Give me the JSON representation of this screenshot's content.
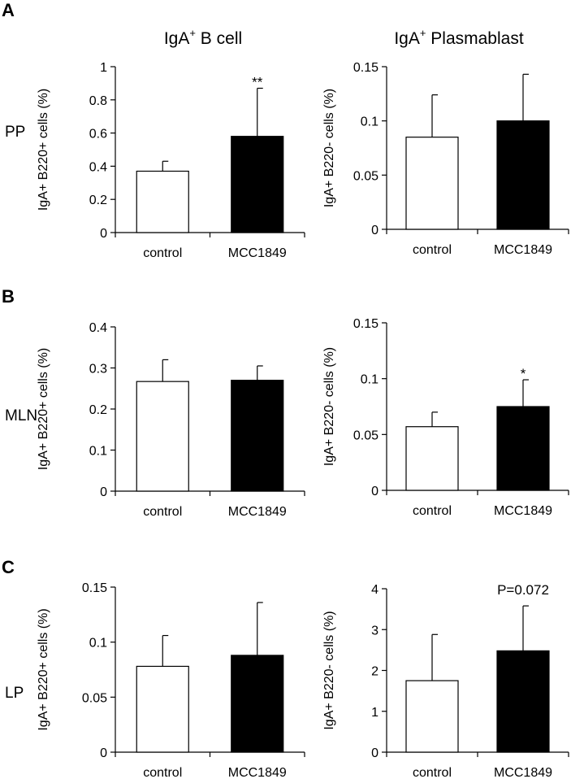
{
  "figure": {
    "column_titles": [
      {
        "main": "IgA",
        "sup": "+",
        "rest": " B cell"
      },
      {
        "main": "IgA",
        "sup": "+",
        "rest": " Plasmablast"
      }
    ],
    "panels": [
      {
        "letter": "A",
        "row_label": "PP"
      },
      {
        "letter": "B",
        "row_label": "MLN"
      },
      {
        "letter": "C",
        "row_label": "LP"
      }
    ],
    "colors": {
      "control_fill": "#ffffff",
      "treatment_fill": "#000000",
      "axis": "#000000"
    }
  },
  "chart_data": [
    {
      "type": "bar",
      "panel": "A",
      "tissue": "PP",
      "ylabel": "IgA+ B220+ cells (%)",
      "categories": [
        "control",
        "MCC1849"
      ],
      "values": [
        0.37,
        0.58
      ],
      "errors": [
        0.06,
        0.29
      ],
      "ylim": [
        0,
        1
      ],
      "yticks": [
        "0",
        "0.2",
        "0.4",
        "0.6",
        "0.8",
        "1"
      ],
      "annotation": "**",
      "annotation_bar": 1
    },
    {
      "type": "bar",
      "panel": "A",
      "tissue": "PP",
      "ylabel": "IgA+ B220- cells (%)",
      "categories": [
        "control",
        "MCC1849"
      ],
      "values": [
        0.085,
        0.1
      ],
      "errors": [
        0.039,
        0.043
      ],
      "ylim": [
        0,
        0.15
      ],
      "yticks": [
        "0",
        "0.05",
        "0.1",
        "0.15"
      ],
      "annotation": "",
      "annotation_bar": 1
    },
    {
      "type": "bar",
      "panel": "B",
      "tissue": "MLN",
      "ylabel": "IgA+ B220+ cells (%)",
      "categories": [
        "control",
        "MCC1849"
      ],
      "values": [
        0.267,
        0.27
      ],
      "errors": [
        0.053,
        0.035
      ],
      "ylim": [
        0,
        0.4
      ],
      "yticks": [
        "0",
        "0.1",
        "0.2",
        "0.3",
        "0.4"
      ],
      "annotation": "",
      "annotation_bar": 1
    },
    {
      "type": "bar",
      "panel": "B",
      "tissue": "MLN",
      "ylabel": "IgA+ B220- cells (%)",
      "categories": [
        "control",
        "MCC1849"
      ],
      "values": [
        0.057,
        0.075
      ],
      "errors": [
        0.013,
        0.024
      ],
      "ylim": [
        0,
        0.15
      ],
      "yticks": [
        "0",
        "0.05",
        "0.1",
        "0.15"
      ],
      "annotation": "*",
      "annotation_bar": 1
    },
    {
      "type": "bar",
      "panel": "C",
      "tissue": "LP",
      "ylabel": "IgA+ B220+ cells (%)",
      "categories": [
        "control",
        "MCC1849"
      ],
      "values": [
        0.078,
        0.088
      ],
      "errors": [
        0.028,
        0.048
      ],
      "ylim": [
        0,
        0.15
      ],
      "yticks": [
        "0",
        "0.05",
        "0.1",
        "0.15"
      ],
      "annotation": "",
      "annotation_bar": 1
    },
    {
      "type": "bar",
      "panel": "C",
      "tissue": "LP",
      "ylabel": "IgA+ B220- cells (%)",
      "categories": [
        "control",
        "MCC1849"
      ],
      "values": [
        1.75,
        2.48
      ],
      "errors": [
        1.13,
        1.1
      ],
      "ylim": [
        0,
        4
      ],
      "yticks": [
        "0",
        "1",
        "2",
        "3",
        "4"
      ],
      "annotation": "P=0.072",
      "annotation_bar": 1
    }
  ]
}
